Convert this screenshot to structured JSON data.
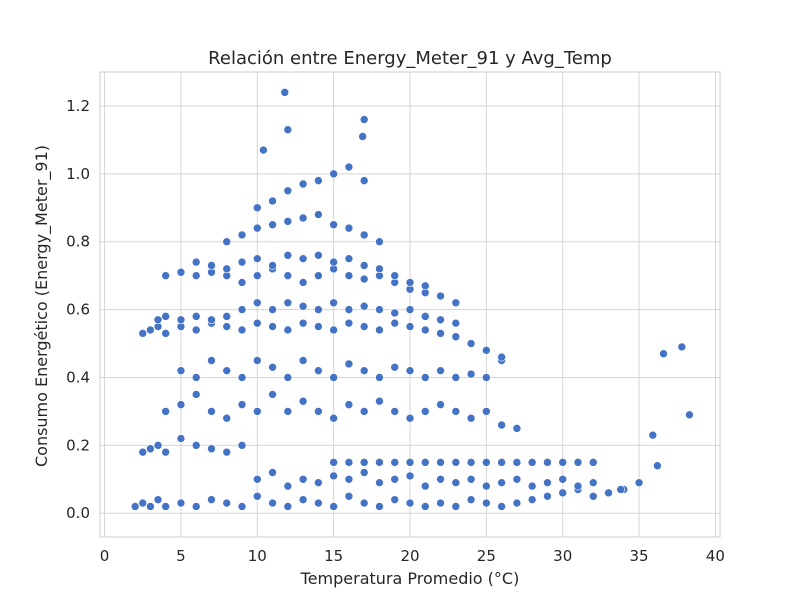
{
  "chart_data": {
    "type": "scatter",
    "title": "Relación entre Energy_Meter_91 y Avg_Temp",
    "xlabel": "Temperatura Promedio (°C)",
    "ylabel": "Consumo Energético (Energy_Meter_91)",
    "xlim": [
      -0.3,
      40.3
    ],
    "ylim": [
      -0.07,
      1.3
    ],
    "xticks": [
      0,
      5,
      10,
      15,
      20,
      25,
      30,
      35,
      40
    ],
    "yticks": [
      0.0,
      0.2,
      0.4,
      0.6,
      0.8,
      1.0,
      1.2
    ],
    "xtick_labels": [
      "0",
      "5",
      "10",
      "15",
      "20",
      "25",
      "30",
      "35",
      "40"
    ],
    "ytick_labels": [
      "0.0",
      "0.2",
      "0.4",
      "0.6",
      "0.8",
      "1.0",
      "1.2"
    ],
    "grid": true,
    "marker_color": "#4472c4",
    "series": [
      {
        "x": [
          2.0,
          2.5,
          3.0,
          3.5,
          4.0,
          5.0,
          6.0,
          7.0,
          8.0,
          9.0,
          10.0,
          11.0,
          12.0,
          13.0,
          14.0,
          15.0,
          16.0,
          17.0,
          18.0,
          19.0,
          20.0,
          21.0,
          22.0,
          23.0,
          24.0,
          25.0,
          26.0,
          27.0,
          28.0,
          29.0,
          30.0,
          31.0,
          32.0,
          33.0,
          34.0,
          2.5,
          3.0,
          3.5,
          4.0,
          5.0,
          6.0,
          7.0,
          8.0,
          9.0,
          10.0,
          11.0,
          12.0,
          13.0,
          14.0,
          15.0,
          16.0,
          17.0,
          18.0,
          19.0,
          20.0,
          21.0,
          22.0,
          23.0,
          24.0,
          25.0,
          26.0,
          27.0,
          28.0,
          29.0,
          30.0,
          31.0,
          32.0,
          15.0,
          16.0,
          17.0,
          18.0,
          19.0,
          20.0,
          21.0,
          22.0,
          23.0,
          24.0,
          25.0,
          26.0,
          27.0,
          28.0,
          29.0,
          30.0,
          31.0,
          32.0,
          4.0,
          5.0,
          6.0,
          7.0,
          8.0,
          9.0,
          10.0,
          11.0,
          12.0,
          13.0,
          14.0,
          15.0,
          16.0,
          17.0,
          18.0,
          19.0,
          20.0,
          21.0,
          22.0,
          23.0,
          24.0,
          25.0,
          26.0,
          27.0,
          5.0,
          6.0,
          7.0,
          8.0,
          9.0,
          10.0,
          11.0,
          12.0,
          13.0,
          14.0,
          15.0,
          16.0,
          17.0,
          18.0,
          19.0,
          20.0,
          21.0,
          22.0,
          23.0,
          24.0,
          25.0,
          26.0,
          2.5,
          3.0,
          3.5,
          4.0,
          5.0,
          6.0,
          7.0,
          8.0,
          9.0,
          10.0,
          11.0,
          12.0,
          13.0,
          14.0,
          15.0,
          16.0,
          17.0,
          18.0,
          19.0,
          20.0,
          21.0,
          22.0,
          23.0,
          24.0,
          25.0,
          26.0,
          3.5,
          4.0,
          5.0,
          6.0,
          7.0,
          8.0,
          9.0,
          10.0,
          11.0,
          12.0,
          13.0,
          14.0,
          15.0,
          16.0,
          17.0,
          18.0,
          19.0,
          20.0,
          21.0,
          22.0,
          23.0,
          4.0,
          5.0,
          6.0,
          7.0,
          8.0,
          9.0,
          10.0,
          11.0,
          12.0,
          13.0,
          14.0,
          15.0,
          16.0,
          17.0,
          18.0,
          19.0,
          20.0,
          21.0,
          22.0,
          23.0,
          6.0,
          7.0,
          8.0,
          9.0,
          10.0,
          11.0,
          12.0,
          13.0,
          14.0,
          15.0,
          16.0,
          17.0,
          18.0,
          19.0,
          20.0,
          21.0,
          8.0,
          9.0,
          10.0,
          11.0,
          12.0,
          13.0,
          14.0,
          15.0,
          16.0,
          17.0,
          18.0,
          10.0,
          11.0,
          12.0,
          13.0,
          14.0,
          15.0,
          16.0,
          17.0,
          11.8,
          17.0,
          16.9,
          10.4,
          12.0,
          36.6,
          37.8,
          38.3,
          35.9,
          36.2,
          35.0,
          33.8
        ],
        "y": [
          0.02,
          0.03,
          0.02,
          0.04,
          0.02,
          0.03,
          0.02,
          0.04,
          0.03,
          0.02,
          0.05,
          0.03,
          0.02,
          0.04,
          0.03,
          0.02,
          0.05,
          0.03,
          0.02,
          0.04,
          0.03,
          0.02,
          0.03,
          0.02,
          0.04,
          0.03,
          0.02,
          0.03,
          0.04,
          0.05,
          0.06,
          0.07,
          0.05,
          0.06,
          0.07,
          0.18,
          0.19,
          0.2,
          0.18,
          0.22,
          0.2,
          0.19,
          0.18,
          0.2,
          0.1,
          0.12,
          0.08,
          0.1,
          0.09,
          0.11,
          0.1,
          0.12,
          0.09,
          0.1,
          0.11,
          0.08,
          0.1,
          0.09,
          0.1,
          0.08,
          0.09,
          0.1,
          0.08,
          0.09,
          0.1,
          0.08,
          0.09,
          0.15,
          0.15,
          0.15,
          0.15,
          0.15,
          0.15,
          0.15,
          0.15,
          0.15,
          0.15,
          0.15,
          0.15,
          0.15,
          0.15,
          0.15,
          0.15,
          0.15,
          0.15,
          0.3,
          0.32,
          0.35,
          0.3,
          0.28,
          0.32,
          0.3,
          0.35,
          0.3,
          0.33,
          0.3,
          0.28,
          0.32,
          0.3,
          0.33,
          0.3,
          0.28,
          0.3,
          0.32,
          0.3,
          0.28,
          0.3,
          0.26,
          0.25,
          0.42,
          0.4,
          0.45,
          0.42,
          0.4,
          0.45,
          0.43,
          0.4,
          0.45,
          0.42,
          0.4,
          0.44,
          0.42,
          0.4,
          0.43,
          0.42,
          0.4,
          0.42,
          0.4,
          0.41,
          0.4,
          0.45,
          0.53,
          0.54,
          0.55,
          0.53,
          0.55,
          0.54,
          0.56,
          0.55,
          0.54,
          0.56,
          0.55,
          0.54,
          0.56,
          0.55,
          0.54,
          0.56,
          0.55,
          0.54,
          0.56,
          0.55,
          0.54,
          0.53,
          0.52,
          0.5,
          0.48,
          0.46,
          0.57,
          0.58,
          0.57,
          0.58,
          0.57,
          0.58,
          0.6,
          0.62,
          0.6,
          0.62,
          0.61,
          0.6,
          0.62,
          0.6,
          0.61,
          0.6,
          0.59,
          0.6,
          0.58,
          0.57,
          0.56,
          0.7,
          0.71,
          0.7,
          0.71,
          0.7,
          0.68,
          0.7,
          0.72,
          0.7,
          0.68,
          0.7,
          0.72,
          0.7,
          0.69,
          0.7,
          0.68,
          0.66,
          0.65,
          0.64,
          0.62,
          0.74,
          0.73,
          0.72,
          0.74,
          0.75,
          0.73,
          0.76,
          0.75,
          0.76,
          0.74,
          0.75,
          0.73,
          0.72,
          0.7,
          0.68,
          0.67,
          0.8,
          0.82,
          0.84,
          0.85,
          0.86,
          0.87,
          0.88,
          0.85,
          0.84,
          0.82,
          0.8,
          0.9,
          0.92,
          0.95,
          0.97,
          0.98,
          1.0,
          1.02,
          0.98,
          1.24,
          1.16,
          1.11,
          1.07,
          1.13,
          0.47,
          0.49,
          0.29,
          0.23,
          0.14,
          0.09,
          0.07
        ]
      }
    ]
  }
}
